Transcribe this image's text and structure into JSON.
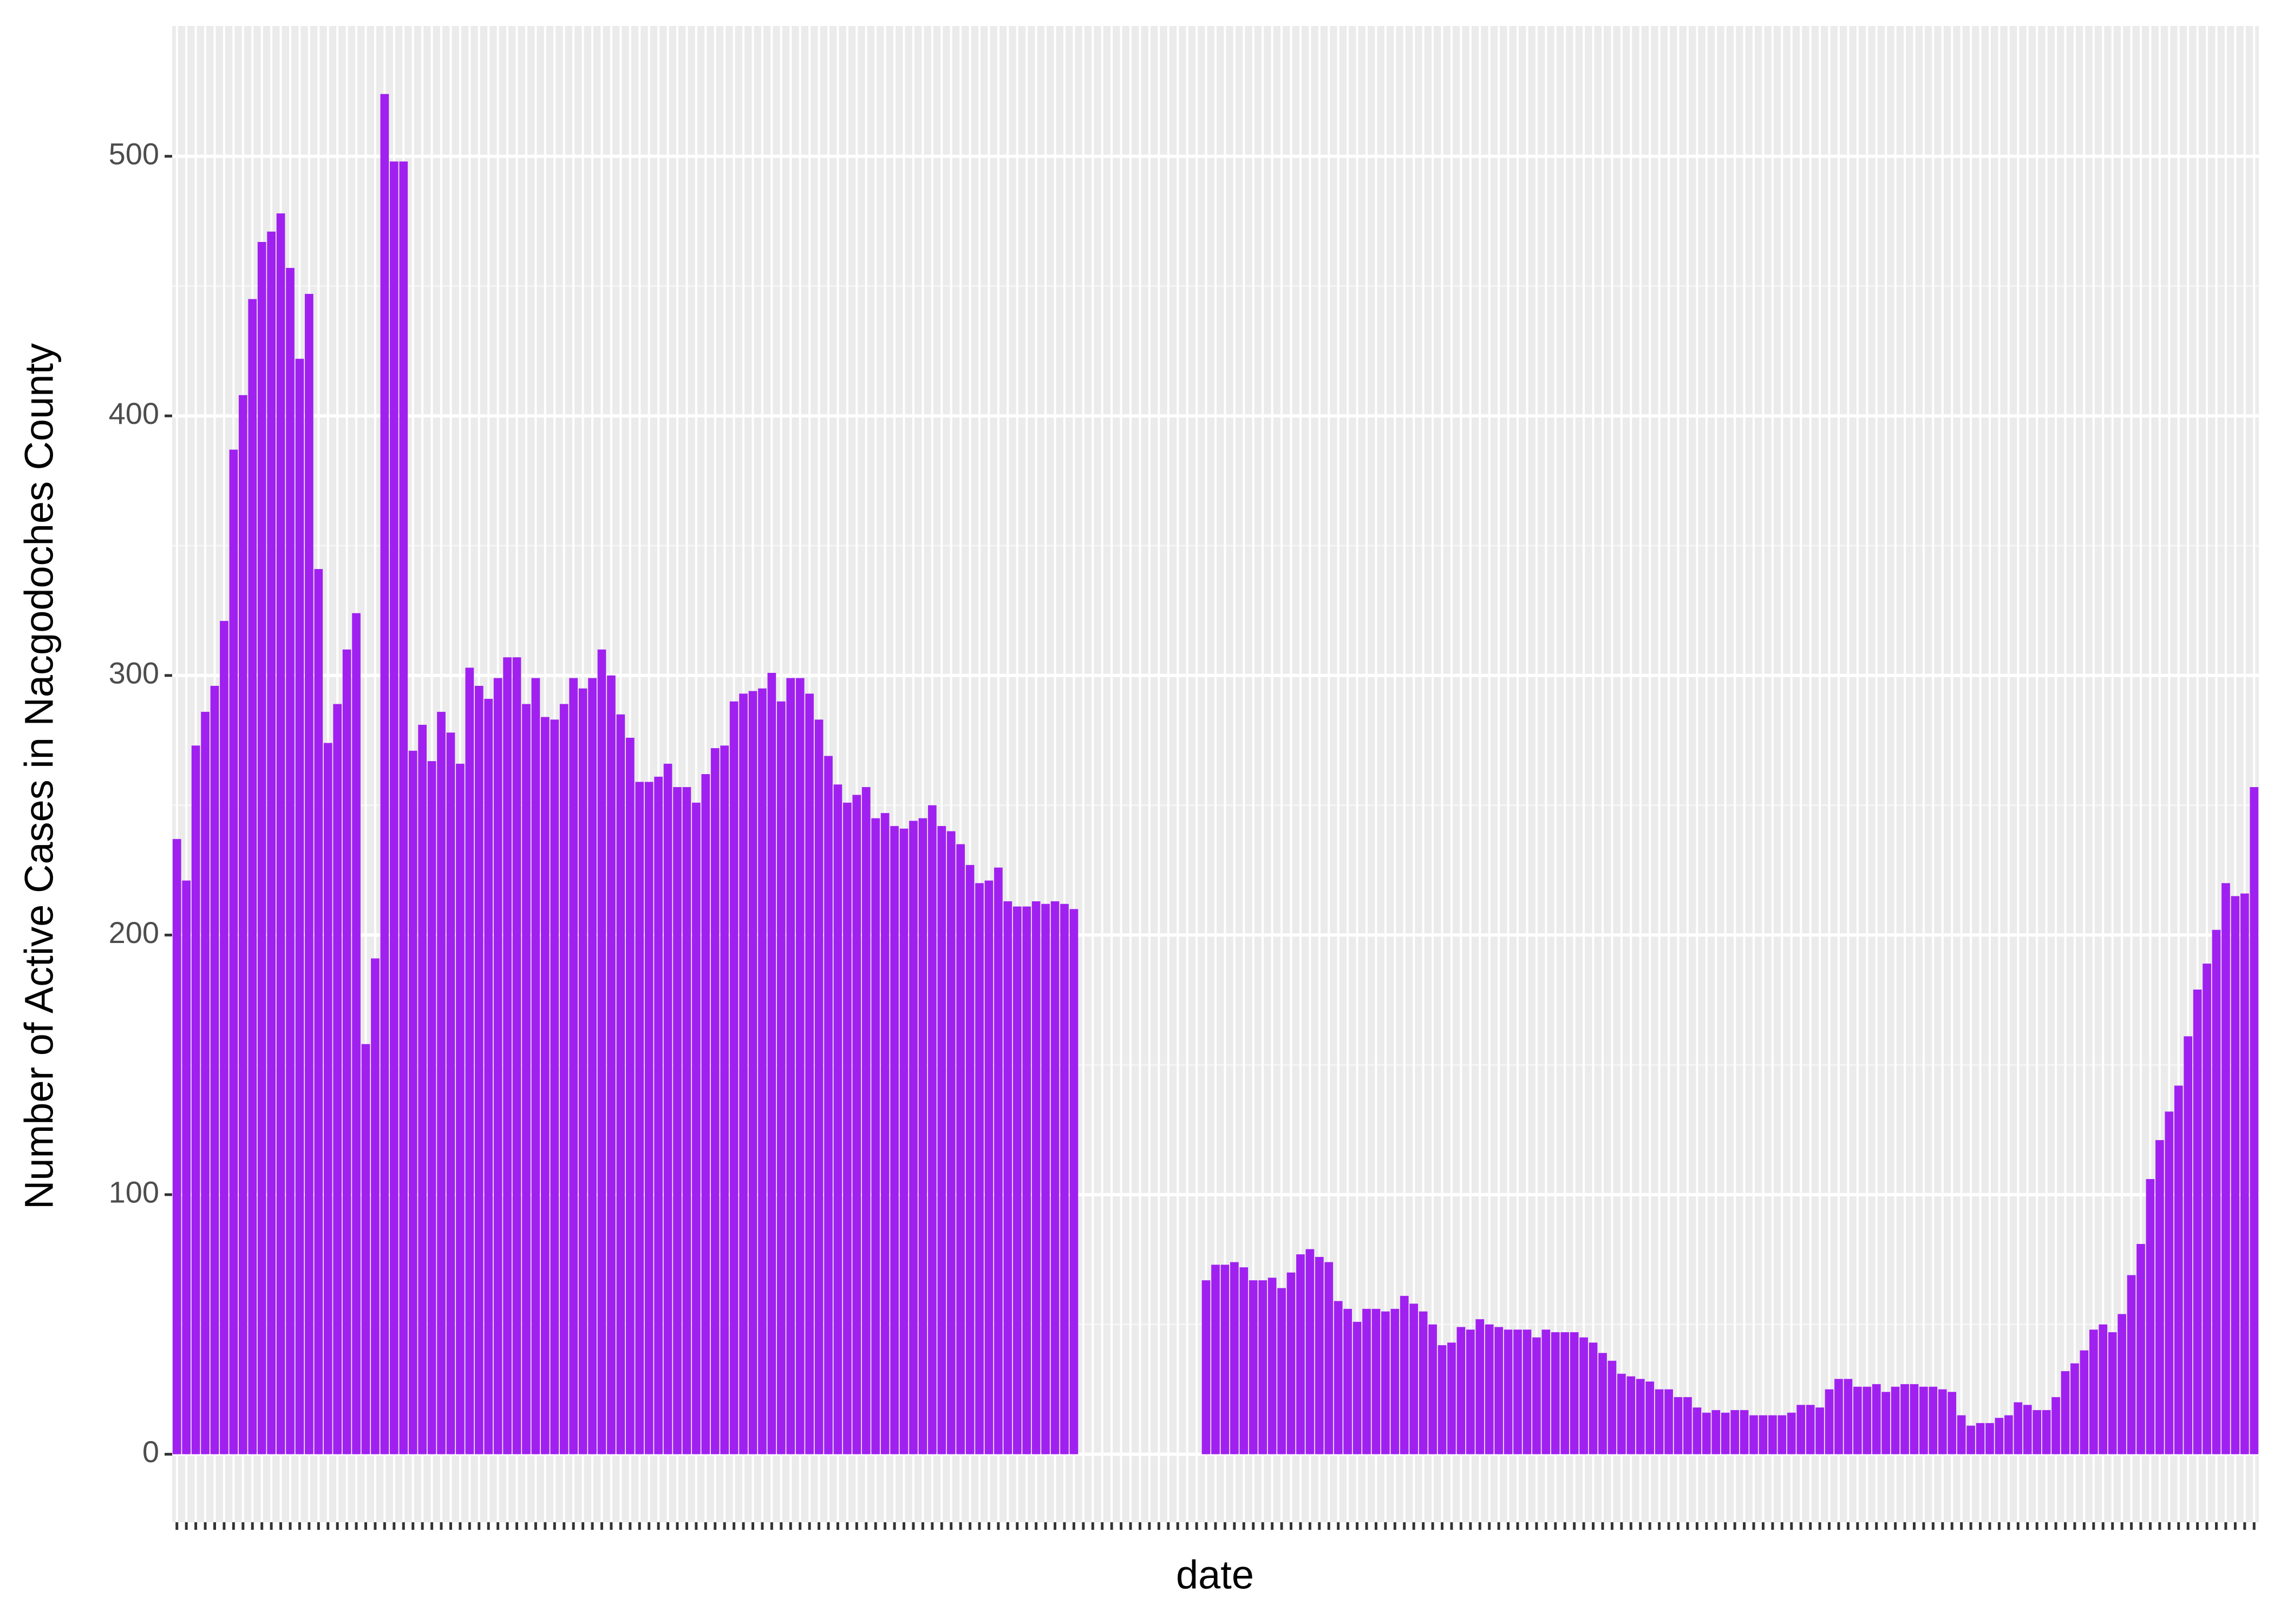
{
  "chart_data": {
    "type": "bar",
    "x_label": "date",
    "y_label": "Number of Active Cases in Nacgodoches County",
    "color": "#a020f0",
    "grid": true,
    "ylim": [
      -26.2,
      550.2
    ],
    "yticks": [
      0,
      100,
      200,
      300,
      400,
      500
    ],
    "categories": [
      null,
      null,
      null,
      null,
      null,
      null,
      null,
      null,
      null,
      null,
      null,
      null,
      null,
      null,
      null,
      null,
      null,
      null,
      null,
      null,
      null,
      null,
      null,
      null,
      null,
      null,
      null,
      null,
      null,
      null,
      null,
      null,
      null,
      null,
      null,
      null,
      null,
      null,
      null,
      null,
      null,
      null,
      null,
      null,
      null,
      null,
      null,
      null,
      null,
      null,
      null,
      null,
      null,
      null,
      null,
      null,
      null,
      null,
      null,
      null,
      null,
      null,
      null,
      null,
      null,
      null,
      null,
      null,
      null,
      null,
      null,
      null,
      null,
      null,
      null,
      null,
      null,
      null,
      null,
      null,
      null,
      null,
      null,
      null,
      null,
      null,
      null,
      null,
      null,
      null,
      null,
      null,
      null,
      null,
      null,
      null,
      null,
      null,
      null,
      null,
      null,
      null,
      null,
      null,
      null,
      null,
      null,
      null,
      null,
      null,
      null,
      null,
      null,
      null,
      null,
      null,
      null,
      null,
      null,
      null,
      null,
      null,
      null,
      null,
      null,
      null,
      null,
      null,
      null,
      null,
      null,
      null,
      null,
      null,
      null,
      null,
      null,
      null,
      null,
      null,
      null,
      null,
      null,
      null,
      null,
      null,
      null,
      null,
      null,
      null,
      null,
      null,
      null,
      null,
      null,
      null,
      null,
      null,
      null,
      null,
      null,
      null,
      null,
      null,
      null,
      null,
      null,
      null,
      null,
      null,
      null,
      null,
      null,
      null,
      null,
      null,
      null,
      null,
      null,
      null,
      null,
      null,
      null,
      null,
      null,
      null,
      null,
      null,
      null,
      null,
      null,
      null,
      null,
      null,
      null,
      null,
      null,
      null,
      null,
      null,
      null,
      null,
      null,
      null,
      null,
      null,
      null,
      null,
      null,
      null,
      null,
      null,
      null,
      null,
      null,
      null,
      null,
      null,
      null,
      null,
      null
    ],
    "values": [
      237,
      221,
      273,
      286,
      296,
      321,
      387,
      408,
      445,
      467,
      471,
      478,
      457,
      422,
      447,
      341,
      274,
      289,
      310,
      324,
      158,
      191,
      524,
      498,
      498,
      271,
      281,
      267,
      286,
      278,
      266,
      303,
      296,
      291,
      299,
      307,
      307,
      289,
      299,
      284,
      283,
      289,
      299,
      295,
      299,
      310,
      300,
      285,
      276,
      259,
      259,
      261,
      266,
      257,
      257,
      251,
      262,
      272,
      273,
      290,
      293,
      294,
      295,
      301,
      290,
      299,
      299,
      293,
      283,
      269,
      258,
      251,
      254,
      257,
      245,
      247,
      242,
      241,
      244,
      245,
      250,
      242,
      240,
      235,
      227,
      220,
      221,
      226,
      213,
      211,
      211,
      213,
      212,
      213,
      212,
      210,
      null,
      null,
      null,
      null,
      null,
      null,
      null,
      null,
      null,
      null,
      null,
      null,
      null,
      67,
      73,
      73,
      74,
      72,
      67,
      67,
      68,
      64,
      70,
      77,
      79,
      76,
      74,
      59,
      56,
      51,
      56,
      56,
      55,
      56,
      61,
      58,
      55,
      50,
      42,
      43,
      49,
      48,
      52,
      50,
      49,
      48,
      48,
      48,
      45,
      48,
      47,
      47,
      47,
      45,
      43,
      39,
      36,
      31,
      30,
      29,
      28,
      25,
      25,
      22,
      22,
      18,
      16,
      17,
      16,
      17,
      17,
      15,
      15,
      15,
      15,
      16,
      19,
      19,
      18,
      25,
      29,
      29,
      26,
      26,
      27,
      24,
      26,
      27,
      27,
      26,
      26,
      25,
      24,
      15,
      11,
      12,
      12,
      14,
      15,
      20,
      19,
      17,
      17,
      22,
      32,
      35,
      40,
      48,
      50,
      47,
      54,
      69,
      81,
      106,
      121,
      132,
      142,
      161,
      179,
      189,
      202,
      220,
      215,
      216,
      257
    ]
  }
}
